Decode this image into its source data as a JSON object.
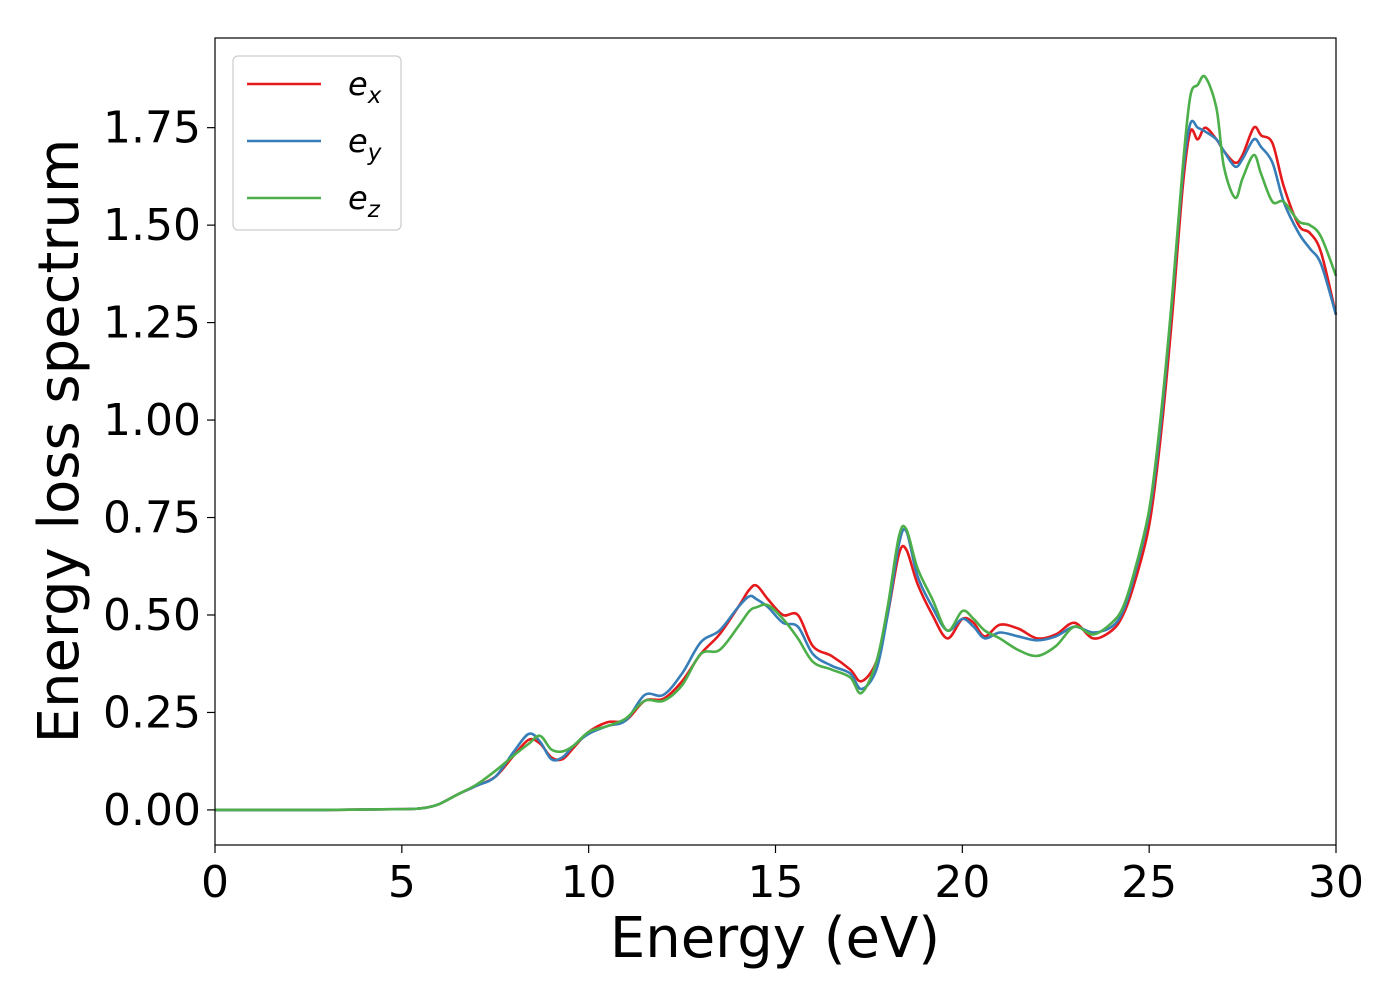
{
  "chart_data": {
    "type": "line",
    "xlabel": "Energy (eV)",
    "ylabel": "Energy loss spectrum",
    "xlim": [
      0,
      30
    ],
    "ylim": [
      -0.09,
      1.98
    ],
    "xticks": [
      0,
      5,
      10,
      15,
      20,
      25,
      30
    ],
    "xtick_labels": [
      "0",
      "5",
      "10",
      "15",
      "20",
      "25",
      "30"
    ],
    "yticks": [
      0.0,
      0.25,
      0.5,
      0.75,
      1.0,
      1.25,
      1.5,
      1.75
    ],
    "ytick_labels": [
      "0.00",
      "0.25",
      "0.50",
      "0.75",
      "1.00",
      "1.25",
      "1.50",
      "1.75"
    ],
    "grid": false,
    "legend_position": "top-left",
    "series": [
      {
        "name": "e_x",
        "legend_base": "e",
        "legend_sub": "x",
        "color": "#e41a1c",
        "points": [
          [
            0,
            0
          ],
          [
            3,
            0
          ],
          [
            5,
            0.002
          ],
          [
            5.6,
            0.005
          ],
          [
            6,
            0.015
          ],
          [
            6.5,
            0.04
          ],
          [
            7,
            0.062
          ],
          [
            7.5,
            0.085
          ],
          [
            8,
            0.14
          ],
          [
            8.4,
            0.18
          ],
          [
            8.7,
            0.17
          ],
          [
            9,
            0.135
          ],
          [
            9.3,
            0.13
          ],
          [
            9.6,
            0.16
          ],
          [
            10,
            0.2
          ],
          [
            10.5,
            0.225
          ],
          [
            11,
            0.23
          ],
          [
            11.5,
            0.28
          ],
          [
            12,
            0.285
          ],
          [
            12.5,
            0.33
          ],
          [
            13,
            0.4
          ],
          [
            13.5,
            0.45
          ],
          [
            14,
            0.52
          ],
          [
            14.3,
            0.565
          ],
          [
            14.5,
            0.575
          ],
          [
            14.8,
            0.54
          ],
          [
            15.2,
            0.5
          ],
          [
            15.6,
            0.5
          ],
          [
            16,
            0.42
          ],
          [
            16.5,
            0.395
          ],
          [
            17,
            0.36
          ],
          [
            17.3,
            0.33
          ],
          [
            17.7,
            0.38
          ],
          [
            18,
            0.5
          ],
          [
            18.3,
            0.655
          ],
          [
            18.5,
            0.668
          ],
          [
            18.8,
            0.58
          ],
          [
            19.2,
            0.5
          ],
          [
            19.6,
            0.44
          ],
          [
            20,
            0.49
          ],
          [
            20.3,
            0.48
          ],
          [
            20.6,
            0.445
          ],
          [
            21,
            0.475
          ],
          [
            21.5,
            0.465
          ],
          [
            22,
            0.44
          ],
          [
            22.5,
            0.45
          ],
          [
            23,
            0.48
          ],
          [
            23.5,
            0.44
          ],
          [
            24,
            0.46
          ],
          [
            24.3,
            0.5
          ],
          [
            24.6,
            0.58
          ],
          [
            25,
            0.73
          ],
          [
            25.3,
            0.95
          ],
          [
            25.6,
            1.25
          ],
          [
            25.9,
            1.6
          ],
          [
            26.1,
            1.74
          ],
          [
            26.3,
            1.72
          ],
          [
            26.5,
            1.75
          ],
          [
            26.8,
            1.72
          ],
          [
            27,
            1.69
          ],
          [
            27.3,
            1.66
          ],
          [
            27.5,
            1.68
          ],
          [
            27.8,
            1.75
          ],
          [
            28,
            1.73
          ],
          [
            28.3,
            1.71
          ],
          [
            28.6,
            1.6
          ],
          [
            29,
            1.5
          ],
          [
            29.3,
            1.48
          ],
          [
            29.6,
            1.43
          ],
          [
            30,
            1.27
          ]
        ]
      },
      {
        "name": "e_y",
        "legend_base": "e",
        "legend_sub": "y",
        "color": "#377eb8",
        "points": [
          [
            0,
            0
          ],
          [
            3,
            0
          ],
          [
            5,
            0.002
          ],
          [
            5.6,
            0.005
          ],
          [
            6,
            0.015
          ],
          [
            6.5,
            0.04
          ],
          [
            7,
            0.062
          ],
          [
            7.5,
            0.085
          ],
          [
            8,
            0.15
          ],
          [
            8.4,
            0.195
          ],
          [
            8.7,
            0.175
          ],
          [
            9,
            0.13
          ],
          [
            9.3,
            0.135
          ],
          [
            9.6,
            0.165
          ],
          [
            10,
            0.195
          ],
          [
            10.5,
            0.215
          ],
          [
            11,
            0.23
          ],
          [
            11.5,
            0.295
          ],
          [
            12,
            0.295
          ],
          [
            12.5,
            0.35
          ],
          [
            13,
            0.43
          ],
          [
            13.5,
            0.46
          ],
          [
            14,
            0.52
          ],
          [
            14.3,
            0.548
          ],
          [
            14.5,
            0.54
          ],
          [
            14.8,
            0.52
          ],
          [
            15.2,
            0.48
          ],
          [
            15.6,
            0.47
          ],
          [
            16,
            0.4
          ],
          [
            16.5,
            0.37
          ],
          [
            17,
            0.35
          ],
          [
            17.3,
            0.31
          ],
          [
            17.7,
            0.36
          ],
          [
            18,
            0.5
          ],
          [
            18.3,
            0.68
          ],
          [
            18.5,
            0.715
          ],
          [
            18.8,
            0.6
          ],
          [
            19.2,
            0.52
          ],
          [
            19.6,
            0.46
          ],
          [
            20,
            0.49
          ],
          [
            20.3,
            0.47
          ],
          [
            20.6,
            0.44
          ],
          [
            21,
            0.455
          ],
          [
            21.5,
            0.445
          ],
          [
            22,
            0.435
          ],
          [
            22.5,
            0.445
          ],
          [
            23,
            0.47
          ],
          [
            23.5,
            0.455
          ],
          [
            24,
            0.47
          ],
          [
            24.3,
            0.51
          ],
          [
            24.6,
            0.6
          ],
          [
            25,
            0.76
          ],
          [
            25.3,
            0.98
          ],
          [
            25.6,
            1.29
          ],
          [
            25.9,
            1.63
          ],
          [
            26.1,
            1.76
          ],
          [
            26.3,
            1.75
          ],
          [
            26.5,
            1.74
          ],
          [
            26.8,
            1.72
          ],
          [
            27,
            1.69
          ],
          [
            27.3,
            1.65
          ],
          [
            27.5,
            1.67
          ],
          [
            27.8,
            1.72
          ],
          [
            28,
            1.7
          ],
          [
            28.3,
            1.66
          ],
          [
            28.6,
            1.56
          ],
          [
            29,
            1.48
          ],
          [
            29.3,
            1.44
          ],
          [
            29.6,
            1.4
          ],
          [
            30,
            1.27
          ]
        ]
      },
      {
        "name": "e_z",
        "legend_base": "e",
        "legend_sub": "z",
        "color": "#4daf4a",
        "points": [
          [
            0,
            0
          ],
          [
            3,
            0
          ],
          [
            5,
            0.002
          ],
          [
            5.6,
            0.005
          ],
          [
            6,
            0.015
          ],
          [
            6.5,
            0.04
          ],
          [
            7,
            0.065
          ],
          [
            7.5,
            0.1
          ],
          [
            8,
            0.14
          ],
          [
            8.4,
            0.17
          ],
          [
            8.7,
            0.19
          ],
          [
            9,
            0.155
          ],
          [
            9.3,
            0.15
          ],
          [
            9.6,
            0.165
          ],
          [
            10,
            0.2
          ],
          [
            10.5,
            0.215
          ],
          [
            11,
            0.235
          ],
          [
            11.5,
            0.28
          ],
          [
            12,
            0.28
          ],
          [
            12.5,
            0.32
          ],
          [
            13,
            0.4
          ],
          [
            13.5,
            0.41
          ],
          [
            14,
            0.47
          ],
          [
            14.3,
            0.51
          ],
          [
            14.5,
            0.52
          ],
          [
            14.8,
            0.525
          ],
          [
            15.2,
            0.49
          ],
          [
            15.6,
            0.44
          ],
          [
            16,
            0.38
          ],
          [
            16.5,
            0.36
          ],
          [
            17,
            0.34
          ],
          [
            17.3,
            0.3
          ],
          [
            17.7,
            0.38
          ],
          [
            18,
            0.52
          ],
          [
            18.3,
            0.7
          ],
          [
            18.5,
            0.72
          ],
          [
            18.8,
            0.62
          ],
          [
            19.2,
            0.54
          ],
          [
            19.6,
            0.46
          ],
          [
            20,
            0.51
          ],
          [
            20.3,
            0.49
          ],
          [
            20.6,
            0.46
          ],
          [
            21,
            0.44
          ],
          [
            21.5,
            0.41
          ],
          [
            22,
            0.395
          ],
          [
            22.5,
            0.42
          ],
          [
            23,
            0.47
          ],
          [
            23.5,
            0.45
          ],
          [
            24,
            0.48
          ],
          [
            24.3,
            0.52
          ],
          [
            24.6,
            0.61
          ],
          [
            25,
            0.77
          ],
          [
            25.3,
            1.0
          ],
          [
            25.6,
            1.3
          ],
          [
            25.9,
            1.65
          ],
          [
            26.1,
            1.83
          ],
          [
            26.3,
            1.86
          ],
          [
            26.5,
            1.88
          ],
          [
            26.8,
            1.8
          ],
          [
            27,
            1.65
          ],
          [
            27.3,
            1.57
          ],
          [
            27.5,
            1.62
          ],
          [
            27.8,
            1.68
          ],
          [
            28,
            1.63
          ],
          [
            28.3,
            1.56
          ],
          [
            28.6,
            1.56
          ],
          [
            29,
            1.51
          ],
          [
            29.3,
            1.5
          ],
          [
            29.6,
            1.47
          ],
          [
            30,
            1.37
          ]
        ]
      }
    ]
  }
}
